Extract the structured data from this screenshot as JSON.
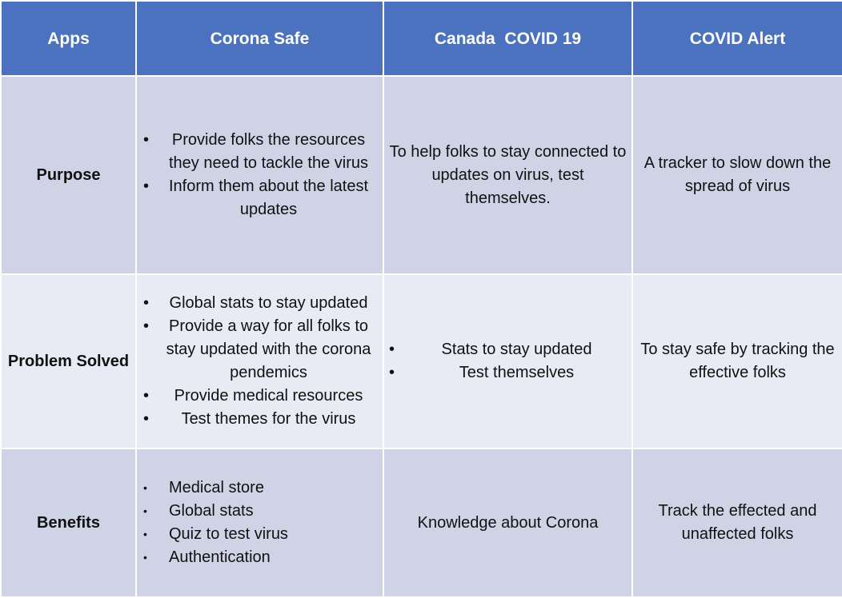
{
  "headers": [
    "Apps",
    "Corona Safe",
    "Canada  COVID 19",
    "COVID Alert"
  ],
  "rows": {
    "purpose": {
      "label": "Purpose",
      "corona_safe": [
        "Provide folks the resources they need to tackle the virus",
        "Inform them about the latest updates"
      ],
      "canada_covid19": "To help folks to stay connected to updates on virus, test themselves.",
      "covid_alert": "A tracker to slow down the spread of virus"
    },
    "problem_solved": {
      "label": "Problem Solved",
      "corona_safe": [
        "Global stats to stay updated",
        "Provide a way for all folks to stay updated with the corona pendemics",
        "Provide medical resources",
        "Test themes for the virus"
      ],
      "canada_covid19": [
        "Stats to stay updated",
        "Test themselves"
      ],
      "covid_alert": "To stay safe by tracking the effective folks"
    },
    "benefits": {
      "label": "Benefits",
      "corona_safe": [
        "Medical store",
        "Global stats",
        "Quiz to test virus",
        "Authentication"
      ],
      "canada_covid19": "Knowledge about Corona",
      "covid_alert": "Track the effected and unaffected folks"
    }
  },
  "colors": {
    "header_bg": "#4a72be",
    "row_dark_bg": "#ced4e6",
    "row_light_bg": "#e8ebf3"
  }
}
